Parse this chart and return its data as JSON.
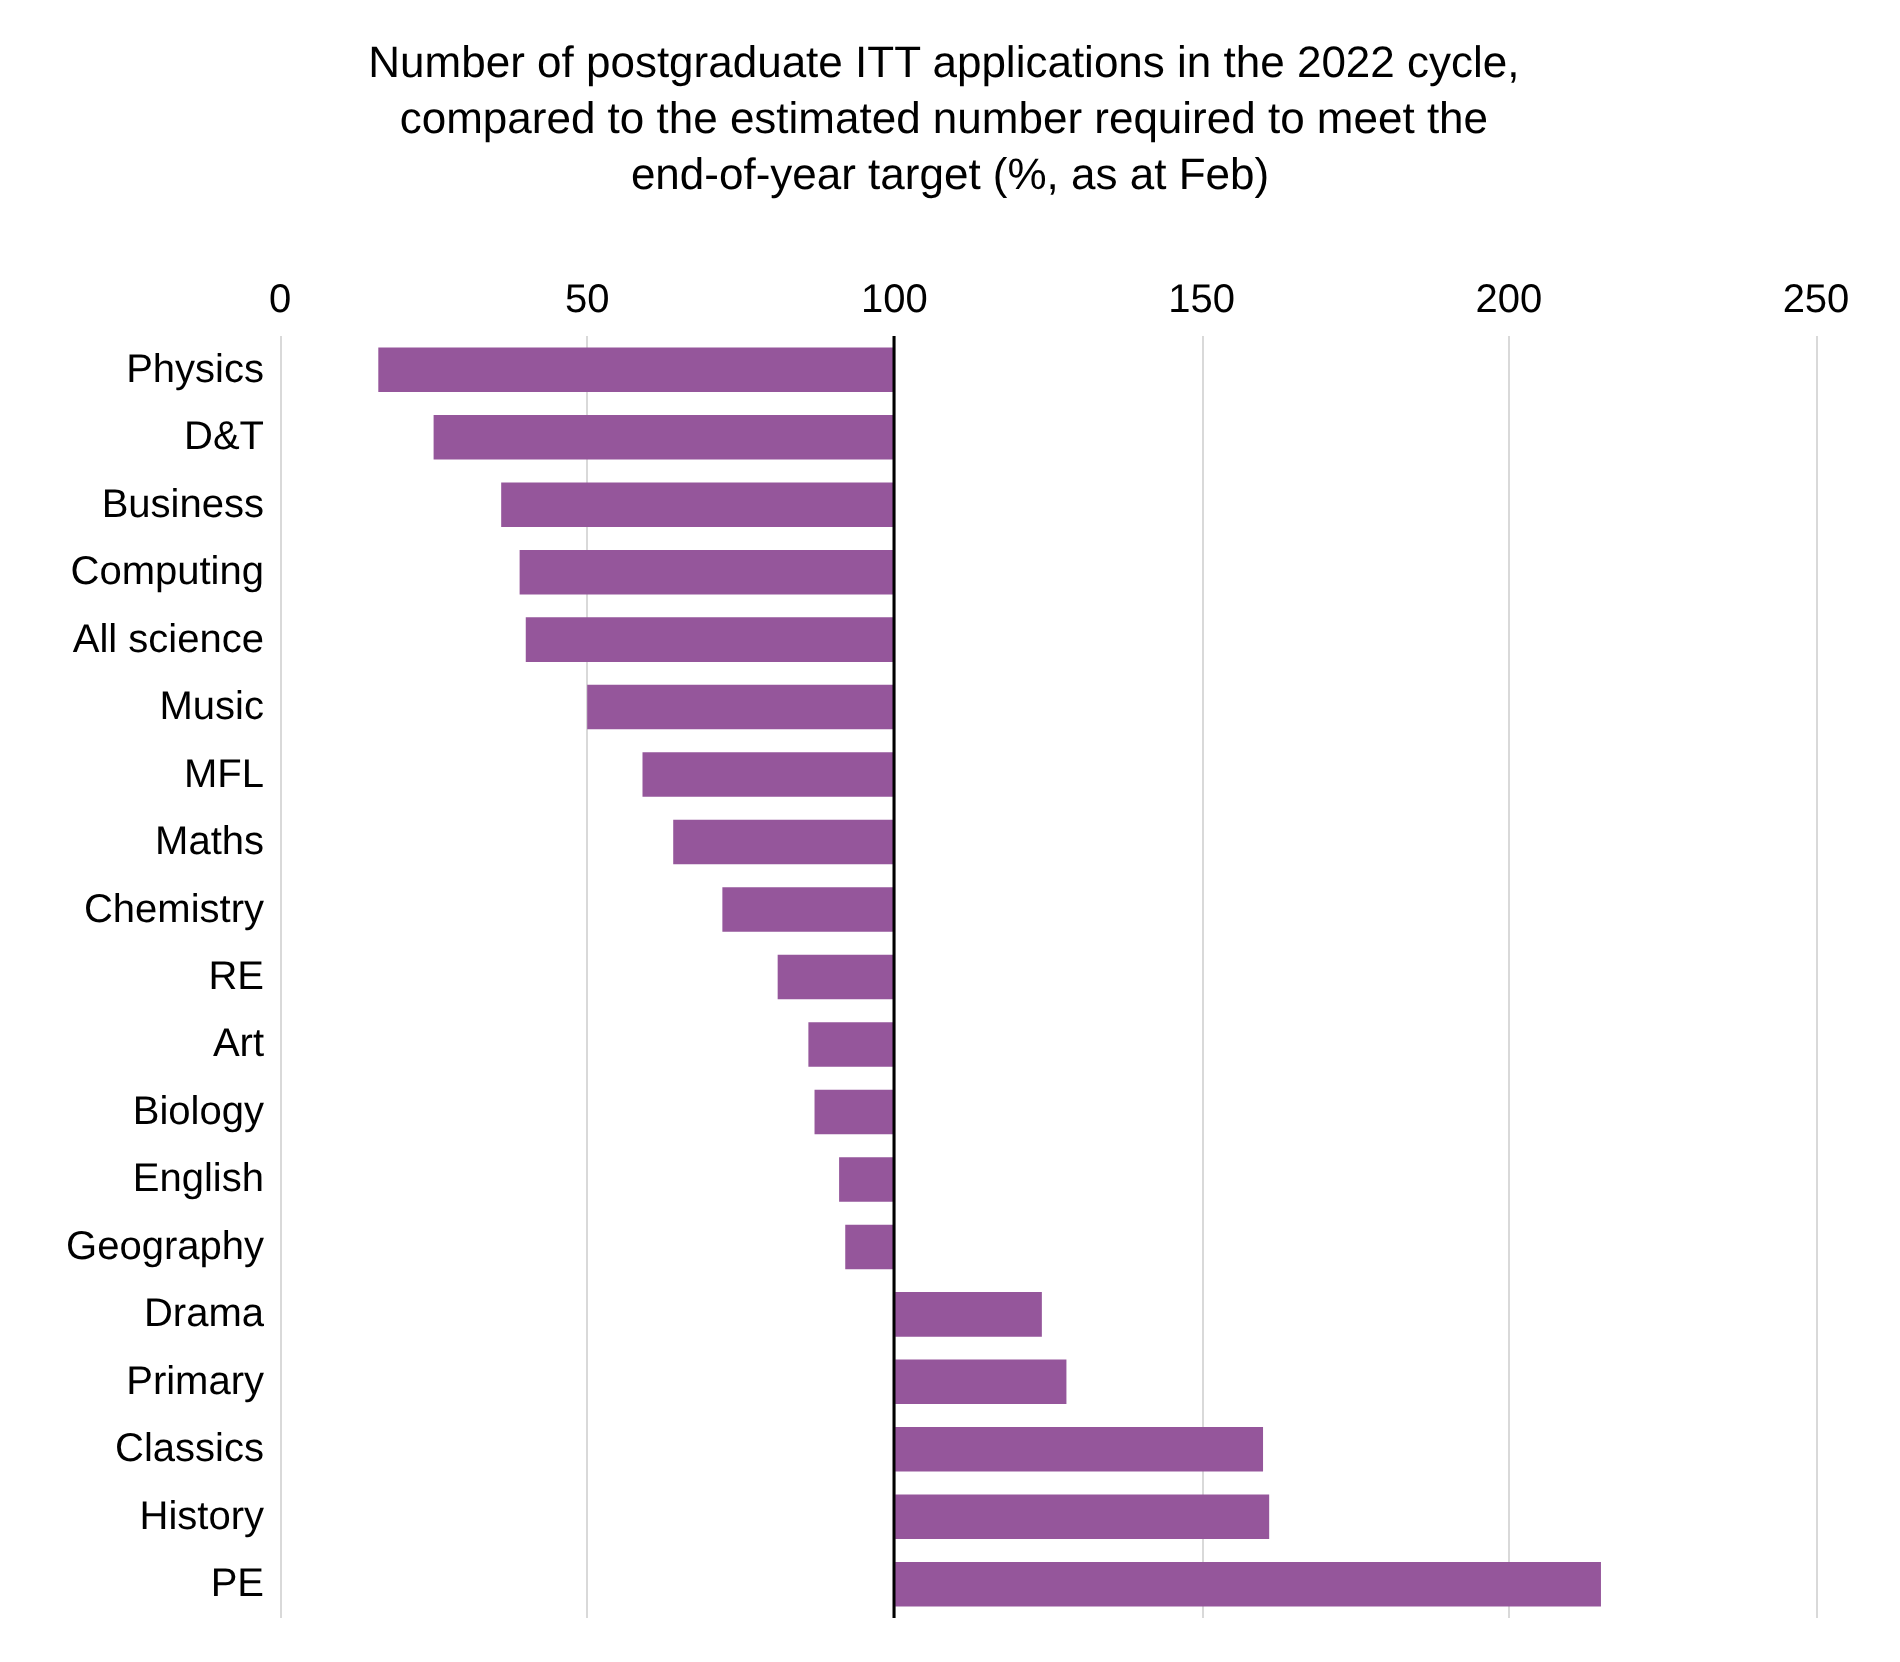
{
  "chart_data": {
    "type": "bar",
    "orientation": "horizontal",
    "title": "Number of postgraduate ITT applications in the 2022 cycle, compared to the estimated number required to meet the end-of-year target (%, as at Feb)",
    "categories": [
      "Physics",
      "D&T",
      "Business",
      "Computing",
      "All science",
      "Music",
      "MFL",
      "Maths",
      "Chemistry",
      "RE",
      "Art",
      "Biology",
      "English",
      "Geography",
      "Drama",
      "Primary",
      "Classics",
      "History",
      "PE"
    ],
    "base": [
      100,
      100,
      100,
      100,
      100,
      100,
      100,
      100,
      100,
      100,
      100,
      100,
      100,
      100,
      100,
      100,
      100,
      100,
      100
    ],
    "values": [
      -84,
      -75,
      -64,
      -61,
      -60,
      -50,
      -41,
      -36,
      -28,
      -19,
      -14,
      -13,
      -9,
      -8,
      24,
      28,
      60,
      61,
      115
    ],
    "color": "#95569b",
    "xlim": [
      0,
      250
    ],
    "xticks": [
      0,
      50,
      100,
      150,
      200,
      250
    ],
    "grid": "x",
    "ref_lines": [
      {
        "axis": "x",
        "value": 100,
        "color": "#000000"
      }
    ]
  }
}
